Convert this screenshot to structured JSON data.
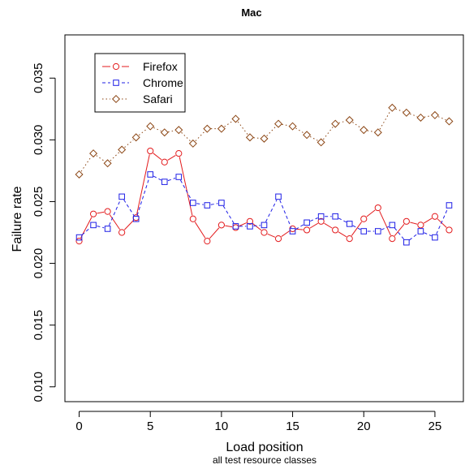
{
  "chart_data": {
    "type": "line",
    "title": "Mac",
    "xlabel": "Load position",
    "subtitle": "all test resource classes",
    "ylabel": "Failure rate",
    "xlim": [
      -1.0,
      27.0
    ],
    "ylim": [
      0.0088,
      0.0385
    ],
    "xticks": [
      0,
      5,
      10,
      15,
      20,
      25
    ],
    "xtick_labels": [
      "0",
      "5",
      "10",
      "15",
      "20",
      "25"
    ],
    "yticks": [
      0.01,
      0.015,
      0.02,
      0.025,
      0.03,
      0.035
    ],
    "ytick_labels": [
      "0.010",
      "0.015",
      "0.020",
      "0.025",
      "0.030",
      "0.035"
    ],
    "grid": false,
    "legend_position": "top-left",
    "x": [
      0,
      1,
      2,
      3,
      4,
      5,
      6,
      7,
      8,
      9,
      10,
      11,
      12,
      13,
      14,
      15,
      16,
      17,
      18,
      19,
      20,
      21,
      22,
      23,
      24,
      25,
      26
    ],
    "series": [
      {
        "name": "Firefox",
        "color": "#e31a1c",
        "line": "solid",
        "marker": "circle",
        "values": [
          0.0218,
          0.024,
          0.0242,
          0.0225,
          0.0237,
          0.0291,
          0.0282,
          0.0289,
          0.0236,
          0.0218,
          0.0231,
          0.0229,
          0.0234,
          0.0225,
          0.022,
          0.0228,
          0.0227,
          0.0234,
          0.0227,
          0.022,
          0.0236,
          0.0245,
          0.022,
          0.0234,
          0.0231,
          0.0238,
          0.0227
        ]
      },
      {
        "name": "Chrome",
        "color": "#1f1fe6",
        "line": "dashed",
        "marker": "square",
        "values": [
          0.0221,
          0.0231,
          0.0228,
          0.0254,
          0.0236,
          0.0272,
          0.0266,
          0.027,
          0.0249,
          0.0247,
          0.0249,
          0.023,
          0.023,
          0.0231,
          0.0254,
          0.0226,
          0.0233,
          0.0238,
          0.0238,
          0.0232,
          0.0226,
          0.0226,
          0.0231,
          0.0217,
          0.0226,
          0.0221,
          0.0247
        ]
      },
      {
        "name": "Safari",
        "color": "#8b4513",
        "line": "dotted",
        "marker": "diamond",
        "values": [
          0.0272,
          0.0289,
          0.0281,
          0.0292,
          0.0302,
          0.0311,
          0.0306,
          0.0308,
          0.0297,
          0.0309,
          0.0309,
          0.0317,
          0.0302,
          0.0301,
          0.0313,
          0.0311,
          0.0304,
          0.0298,
          0.0313,
          0.0316,
          0.0308,
          0.0306,
          0.0326,
          0.0322,
          0.0318,
          0.032,
          0.0315
        ]
      }
    ]
  }
}
